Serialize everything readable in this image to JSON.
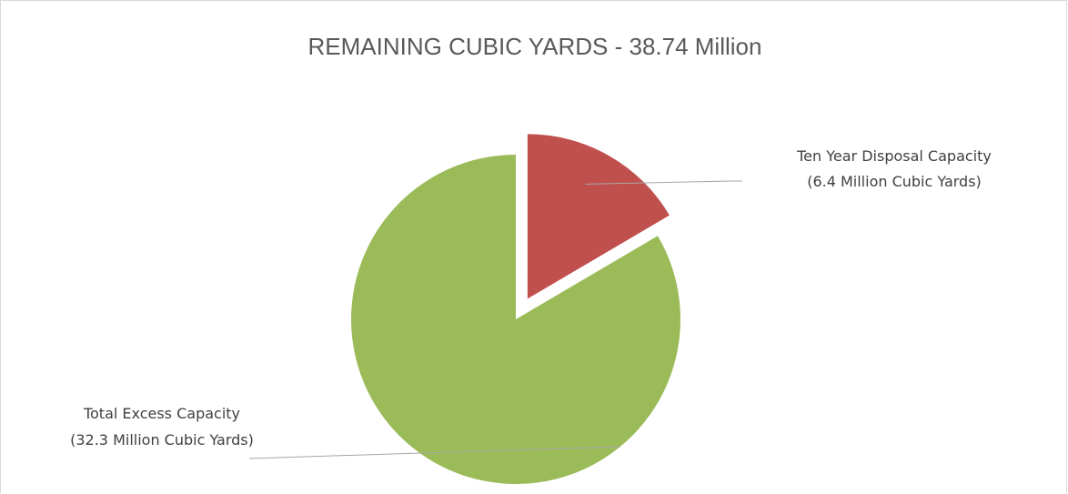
{
  "chart_data": {
    "type": "pie",
    "title": "REMAINING CUBIC YARDS - 38.74 Million",
    "slices": [
      {
        "name": "Ten Year Disposal Capacity",
        "value": 6.4,
        "label_line1": "Ten Year Disposal Capacity",
        "label_line2": "(6.4 Million Cubic Yards)",
        "color": "#c0504d",
        "exploded": true
      },
      {
        "name": "Total Excess Capacity",
        "value": 32.3,
        "label_line1": "Total Excess Capacity",
        "label_line2": "(32.3 Million Cubic Yards)",
        "color": "#9bbb59",
        "exploded": false
      }
    ],
    "legend": "none",
    "data_labels": "outside with leader lines"
  }
}
